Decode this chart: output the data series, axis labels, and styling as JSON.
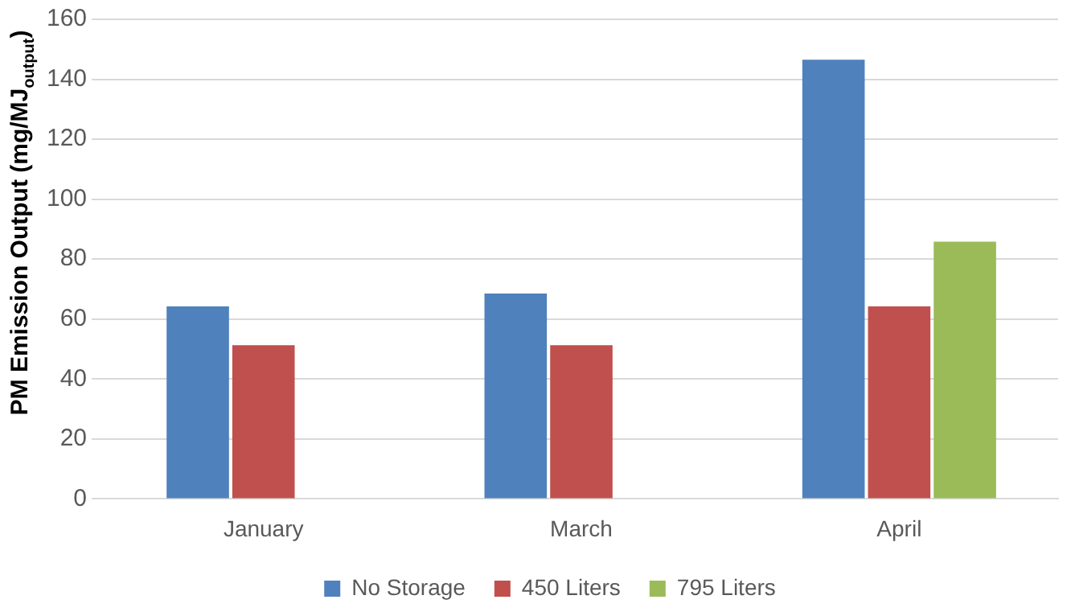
{
  "chart_data": {
    "type": "bar",
    "ylabel": "PM Emission Output (mg/MJ$_{output}$)",
    "categories": [
      "January",
      "March",
      "April"
    ],
    "series": [
      {
        "name": "No Storage",
        "color": "#4f81bd",
        "values": [
          64.2,
          68.5,
          146.5
        ]
      },
      {
        "name": "450 Liters",
        "color": "#c0504d",
        "values": [
          51.3,
          51.3,
          64.2
        ]
      },
      {
        "name": "795 Liters",
        "color": "#9bbb59",
        "values": [
          null,
          null,
          85.8
        ]
      }
    ],
    "ylim": [
      0,
      160
    ],
    "yticks": [
      0,
      20,
      40,
      60,
      80,
      100,
      120,
      140,
      160
    ],
    "grid": "y",
    "legend": "bottom"
  }
}
